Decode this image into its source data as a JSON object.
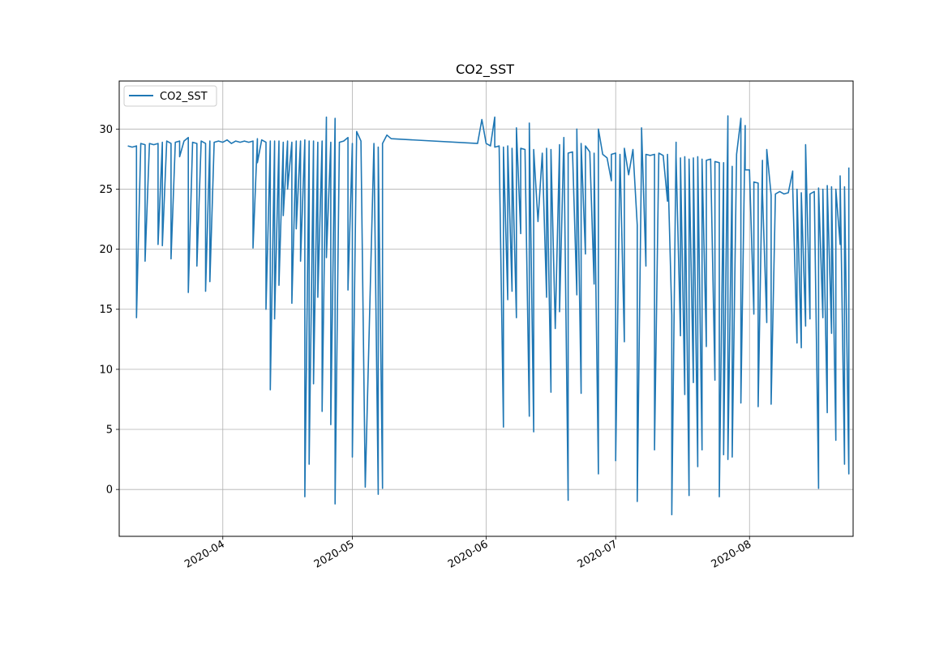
{
  "chart_data": {
    "type": "line",
    "title": "CO2_SST",
    "xlabel": "",
    "ylabel": "",
    "x_tick_labels": [
      "2020-04",
      "2020-05",
      "2020-06",
      "2020-07",
      "2020-08"
    ],
    "x_ticks": [
      "2020-04-01",
      "2020-05-01",
      "2020-06-01",
      "2020-07-01",
      "2020-08-01"
    ],
    "y_tick_labels": [
      "0",
      "5",
      "10",
      "15",
      "20",
      "25",
      "30"
    ],
    "y_ticks": [
      0,
      5,
      10,
      15,
      20,
      25,
      30
    ],
    "xlim": [
      "2020-03-08",
      "2020-08-25"
    ],
    "ylim": [
      -3.9,
      34.0
    ],
    "grid": true,
    "legend_position": "top-left",
    "series": [
      {
        "name": "CO2_SST",
        "color": "#1f77b4",
        "points": [
          [
            "2020-03-10",
            28.6
          ],
          [
            "2020-03-11",
            28.5
          ],
          [
            "2020-03-12",
            28.6
          ],
          [
            "2020-03-12",
            14.3
          ],
          [
            "2020-03-13",
            28.8
          ],
          [
            "2020-03-14",
            28.7
          ],
          [
            "2020-03-14",
            19.0
          ],
          [
            "2020-03-15",
            28.8
          ],
          [
            "2020-03-16",
            28.7
          ],
          [
            "2020-03-17",
            28.8
          ],
          [
            "2020-03-17",
            20.4
          ],
          [
            "2020-03-18",
            28.9
          ],
          [
            "2020-03-18",
            20.3
          ],
          [
            "2020-03-19",
            29.0
          ],
          [
            "2020-03-20",
            28.8
          ],
          [
            "2020-03-20",
            19.2
          ],
          [
            "2020-03-21",
            28.9
          ],
          [
            "2020-03-22",
            29.0
          ],
          [
            "2020-03-22",
            27.7
          ],
          [
            "2020-03-23",
            29.0
          ],
          [
            "2020-03-24",
            29.3
          ],
          [
            "2020-03-24",
            16.4
          ],
          [
            "2020-03-25",
            28.9
          ],
          [
            "2020-03-26",
            28.8
          ],
          [
            "2020-03-26",
            18.6
          ],
          [
            "2020-03-27",
            29.0
          ],
          [
            "2020-03-28",
            28.8
          ],
          [
            "2020-03-28",
            16.5
          ],
          [
            "2020-03-29",
            29.0
          ],
          [
            "2020-03-29",
            17.3
          ],
          [
            "2020-03-30",
            28.9
          ],
          [
            "2020-03-31",
            29.0
          ],
          [
            "2020-04-01",
            28.9
          ],
          [
            "2020-04-02",
            29.1
          ],
          [
            "2020-04-03",
            28.8
          ],
          [
            "2020-04-04",
            29.0
          ],
          [
            "2020-04-05",
            28.9
          ],
          [
            "2020-04-06",
            29.0
          ],
          [
            "2020-04-07",
            28.9
          ],
          [
            "2020-04-08",
            29.0
          ],
          [
            "2020-04-08",
            20.1
          ],
          [
            "2020-04-09",
            29.2
          ],
          [
            "2020-04-09",
            27.2
          ],
          [
            "2020-04-10",
            29.1
          ],
          [
            "2020-04-11",
            28.9
          ],
          [
            "2020-04-11",
            15.0
          ],
          [
            "2020-04-12",
            29.0
          ],
          [
            "2020-04-12",
            8.3
          ],
          [
            "2020-04-13",
            29.0
          ],
          [
            "2020-04-13",
            14.2
          ],
          [
            "2020-04-14",
            29.0
          ],
          [
            "2020-04-14",
            17.0
          ],
          [
            "2020-04-15",
            28.9
          ],
          [
            "2020-04-15",
            22.8
          ],
          [
            "2020-04-16",
            29.0
          ],
          [
            "2020-04-16",
            25.0
          ],
          [
            "2020-04-17",
            28.9
          ],
          [
            "2020-04-17",
            15.5
          ],
          [
            "2020-04-18",
            29.0
          ],
          [
            "2020-04-18",
            21.7
          ],
          [
            "2020-04-19",
            29.0
          ],
          [
            "2020-04-19",
            19.0
          ],
          [
            "2020-04-20",
            29.1
          ],
          [
            "2020-04-20",
            -0.6
          ],
          [
            "2020-04-21",
            29.0
          ],
          [
            "2020-04-21",
            2.1
          ],
          [
            "2020-04-22",
            29.0
          ],
          [
            "2020-04-22",
            8.8
          ],
          [
            "2020-04-23",
            28.9
          ],
          [
            "2020-04-23",
            16.0
          ],
          [
            "2020-04-24",
            29.0
          ],
          [
            "2020-04-24",
            6.5
          ],
          [
            "2020-04-25",
            31.0
          ],
          [
            "2020-04-25",
            19.3
          ],
          [
            "2020-04-26",
            28.9
          ],
          [
            "2020-04-26",
            5.4
          ],
          [
            "2020-04-27",
            30.9
          ],
          [
            "2020-04-27",
            -1.2
          ],
          [
            "2020-04-28",
            28.9
          ],
          [
            "2020-04-29",
            29.0
          ],
          [
            "2020-04-30",
            29.3
          ],
          [
            "2020-04-30",
            16.6
          ],
          [
            "2020-05-01",
            28.8
          ],
          [
            "2020-05-01",
            2.7
          ],
          [
            "2020-05-02",
            29.8
          ],
          [
            "2020-05-03",
            29.0
          ],
          [
            "2020-05-04",
            0.2
          ],
          [
            "2020-05-06",
            28.8
          ],
          [
            "2020-05-07",
            -0.4
          ],
          [
            "2020-05-07",
            28.5
          ],
          [
            "2020-05-08",
            0.1
          ],
          [
            "2020-05-08",
            28.8
          ],
          [
            "2020-05-09",
            29.5
          ],
          [
            "2020-05-10",
            29.2
          ],
          [
            "2020-05-30",
            28.8
          ],
          [
            "2020-05-31",
            30.8
          ],
          [
            "2020-06-01",
            28.8
          ],
          [
            "2020-06-02",
            28.6
          ],
          [
            "2020-06-03",
            31.0
          ],
          [
            "2020-06-03",
            28.5
          ],
          [
            "2020-06-04",
            28.6
          ],
          [
            "2020-06-05",
            5.2
          ],
          [
            "2020-06-05",
            28.5
          ],
          [
            "2020-06-06",
            15.8
          ],
          [
            "2020-06-06",
            28.6
          ],
          [
            "2020-06-07",
            16.5
          ],
          [
            "2020-06-07",
            28.4
          ],
          [
            "2020-06-08",
            14.3
          ],
          [
            "2020-06-08",
            30.1
          ],
          [
            "2020-06-09",
            21.3
          ],
          [
            "2020-06-09",
            28.4
          ],
          [
            "2020-06-10",
            28.3
          ],
          [
            "2020-06-11",
            6.1
          ],
          [
            "2020-06-11",
            30.5
          ],
          [
            "2020-06-12",
            4.8
          ],
          [
            "2020-06-12",
            28.3
          ],
          [
            "2020-06-13",
            22.3
          ],
          [
            "2020-06-14",
            28.0
          ],
          [
            "2020-06-15",
            16.0
          ],
          [
            "2020-06-15",
            28.4
          ],
          [
            "2020-06-16",
            8.1
          ],
          [
            "2020-06-16",
            28.3
          ],
          [
            "2020-06-17",
            13.4
          ],
          [
            "2020-06-18",
            28.7
          ],
          [
            "2020-06-18",
            14.8
          ],
          [
            "2020-06-19",
            29.3
          ],
          [
            "2020-06-20",
            -0.9
          ],
          [
            "2020-06-20",
            28.0
          ],
          [
            "2020-06-21",
            28.1
          ],
          [
            "2020-06-22",
            16.2
          ],
          [
            "2020-06-22",
            30.0
          ],
          [
            "2020-06-23",
            8.0
          ],
          [
            "2020-06-23",
            28.8
          ],
          [
            "2020-06-24",
            19.6
          ],
          [
            "2020-06-24",
            28.6
          ],
          [
            "2020-06-25",
            28.1
          ],
          [
            "2020-06-26",
            17.1
          ],
          [
            "2020-06-26",
            28.0
          ],
          [
            "2020-06-27",
            1.3
          ],
          [
            "2020-06-27",
            30.0
          ],
          [
            "2020-06-28",
            27.9
          ],
          [
            "2020-06-29",
            27.6
          ],
          [
            "2020-06-30",
            25.7
          ],
          [
            "2020-06-30",
            27.9
          ],
          [
            "2020-07-01",
            28.0
          ],
          [
            "2020-07-01",
            2.4
          ],
          [
            "2020-07-02",
            27.9
          ],
          [
            "2020-07-03",
            12.3
          ],
          [
            "2020-07-03",
            28.4
          ],
          [
            "2020-07-04",
            26.2
          ],
          [
            "2020-07-05",
            28.3
          ],
          [
            "2020-07-06",
            22.0
          ],
          [
            "2020-07-06",
            -1.0
          ],
          [
            "2020-07-07",
            28.0
          ],
          [
            "2020-07-07",
            30.1
          ],
          [
            "2020-07-08",
            18.6
          ],
          [
            "2020-07-08",
            27.9
          ],
          [
            "2020-07-09",
            27.8
          ],
          [
            "2020-07-10",
            27.9
          ],
          [
            "2020-07-10",
            3.3
          ],
          [
            "2020-07-11",
            28.0
          ],
          [
            "2020-07-12",
            27.8
          ],
          [
            "2020-07-13",
            24.0
          ],
          [
            "2020-07-13",
            27.9
          ],
          [
            "2020-07-14",
            14.5
          ],
          [
            "2020-07-14",
            -2.1
          ],
          [
            "2020-07-15",
            28.9
          ],
          [
            "2020-07-15",
            27.7
          ],
          [
            "2020-07-16",
            12.8
          ],
          [
            "2020-07-16",
            27.6
          ],
          [
            "2020-07-17",
            7.9
          ],
          [
            "2020-07-17",
            27.7
          ],
          [
            "2020-07-18",
            -0.5
          ],
          [
            "2020-07-18",
            27.5
          ],
          [
            "2020-07-19",
            8.9
          ],
          [
            "2020-07-19",
            27.6
          ],
          [
            "2020-07-20",
            1.9
          ],
          [
            "2020-07-20",
            27.7
          ],
          [
            "2020-07-21",
            3.3
          ],
          [
            "2020-07-21",
            27.5
          ],
          [
            "2020-07-22",
            11.9
          ],
          [
            "2020-07-22",
            27.4
          ],
          [
            "2020-07-23",
            27.5
          ],
          [
            "2020-07-24",
            9.1
          ],
          [
            "2020-07-24",
            27.3
          ],
          [
            "2020-07-25",
            27.2
          ],
          [
            "2020-07-25",
            -0.6
          ],
          [
            "2020-07-26",
            27.2
          ],
          [
            "2020-07-26",
            2.9
          ],
          [
            "2020-07-27",
            31.1
          ],
          [
            "2020-07-27",
            2.5
          ],
          [
            "2020-07-28",
            26.9
          ],
          [
            "2020-07-28",
            2.7
          ],
          [
            "2020-07-29",
            27.9
          ],
          [
            "2020-07-30",
            30.9
          ],
          [
            "2020-07-30",
            7.2
          ],
          [
            "2020-07-31",
            30.3
          ],
          [
            "2020-07-31",
            26.6
          ],
          [
            "2020-08-01",
            26.6
          ],
          [
            "2020-08-02",
            14.6
          ],
          [
            "2020-08-02",
            25.6
          ],
          [
            "2020-08-03",
            25.5
          ],
          [
            "2020-08-03",
            6.9
          ],
          [
            "2020-08-04",
            27.4
          ],
          [
            "2020-08-04",
            24.7
          ],
          [
            "2020-08-05",
            13.9
          ],
          [
            "2020-08-05",
            28.3
          ],
          [
            "2020-08-06",
            24.5
          ],
          [
            "2020-08-06",
            7.1
          ],
          [
            "2020-08-07",
            24.6
          ],
          [
            "2020-08-08",
            24.8
          ],
          [
            "2020-08-09",
            24.6
          ],
          [
            "2020-08-10",
            24.7
          ],
          [
            "2020-08-11",
            26.5
          ],
          [
            "2020-08-11",
            25.2
          ],
          [
            "2020-08-12",
            12.2
          ],
          [
            "2020-08-12",
            25.0
          ],
          [
            "2020-08-13",
            11.8
          ],
          [
            "2020-08-13",
            24.7
          ],
          [
            "2020-08-14",
            13.6
          ],
          [
            "2020-08-14",
            28.7
          ],
          [
            "2020-08-15",
            14.2
          ],
          [
            "2020-08-15",
            24.6
          ],
          [
            "2020-08-16",
            24.8
          ],
          [
            "2020-08-17",
            0.1
          ],
          [
            "2020-08-17",
            25.1
          ],
          [
            "2020-08-18",
            14.3
          ],
          [
            "2020-08-18",
            25.0
          ],
          [
            "2020-08-19",
            6.4
          ],
          [
            "2020-08-19",
            25.3
          ],
          [
            "2020-08-20",
            13.0
          ],
          [
            "2020-08-20",
            25.2
          ],
          [
            "2020-08-21",
            4.1
          ],
          [
            "2020-08-21",
            25.0
          ],
          [
            "2020-08-22",
            20.4
          ],
          [
            "2020-08-22",
            26.1
          ],
          [
            "2020-08-23",
            2.1
          ],
          [
            "2020-08-23",
            25.2
          ],
          [
            "2020-08-24",
            1.3
          ],
          [
            "2020-08-24",
            26.8
          ]
        ]
      }
    ]
  }
}
